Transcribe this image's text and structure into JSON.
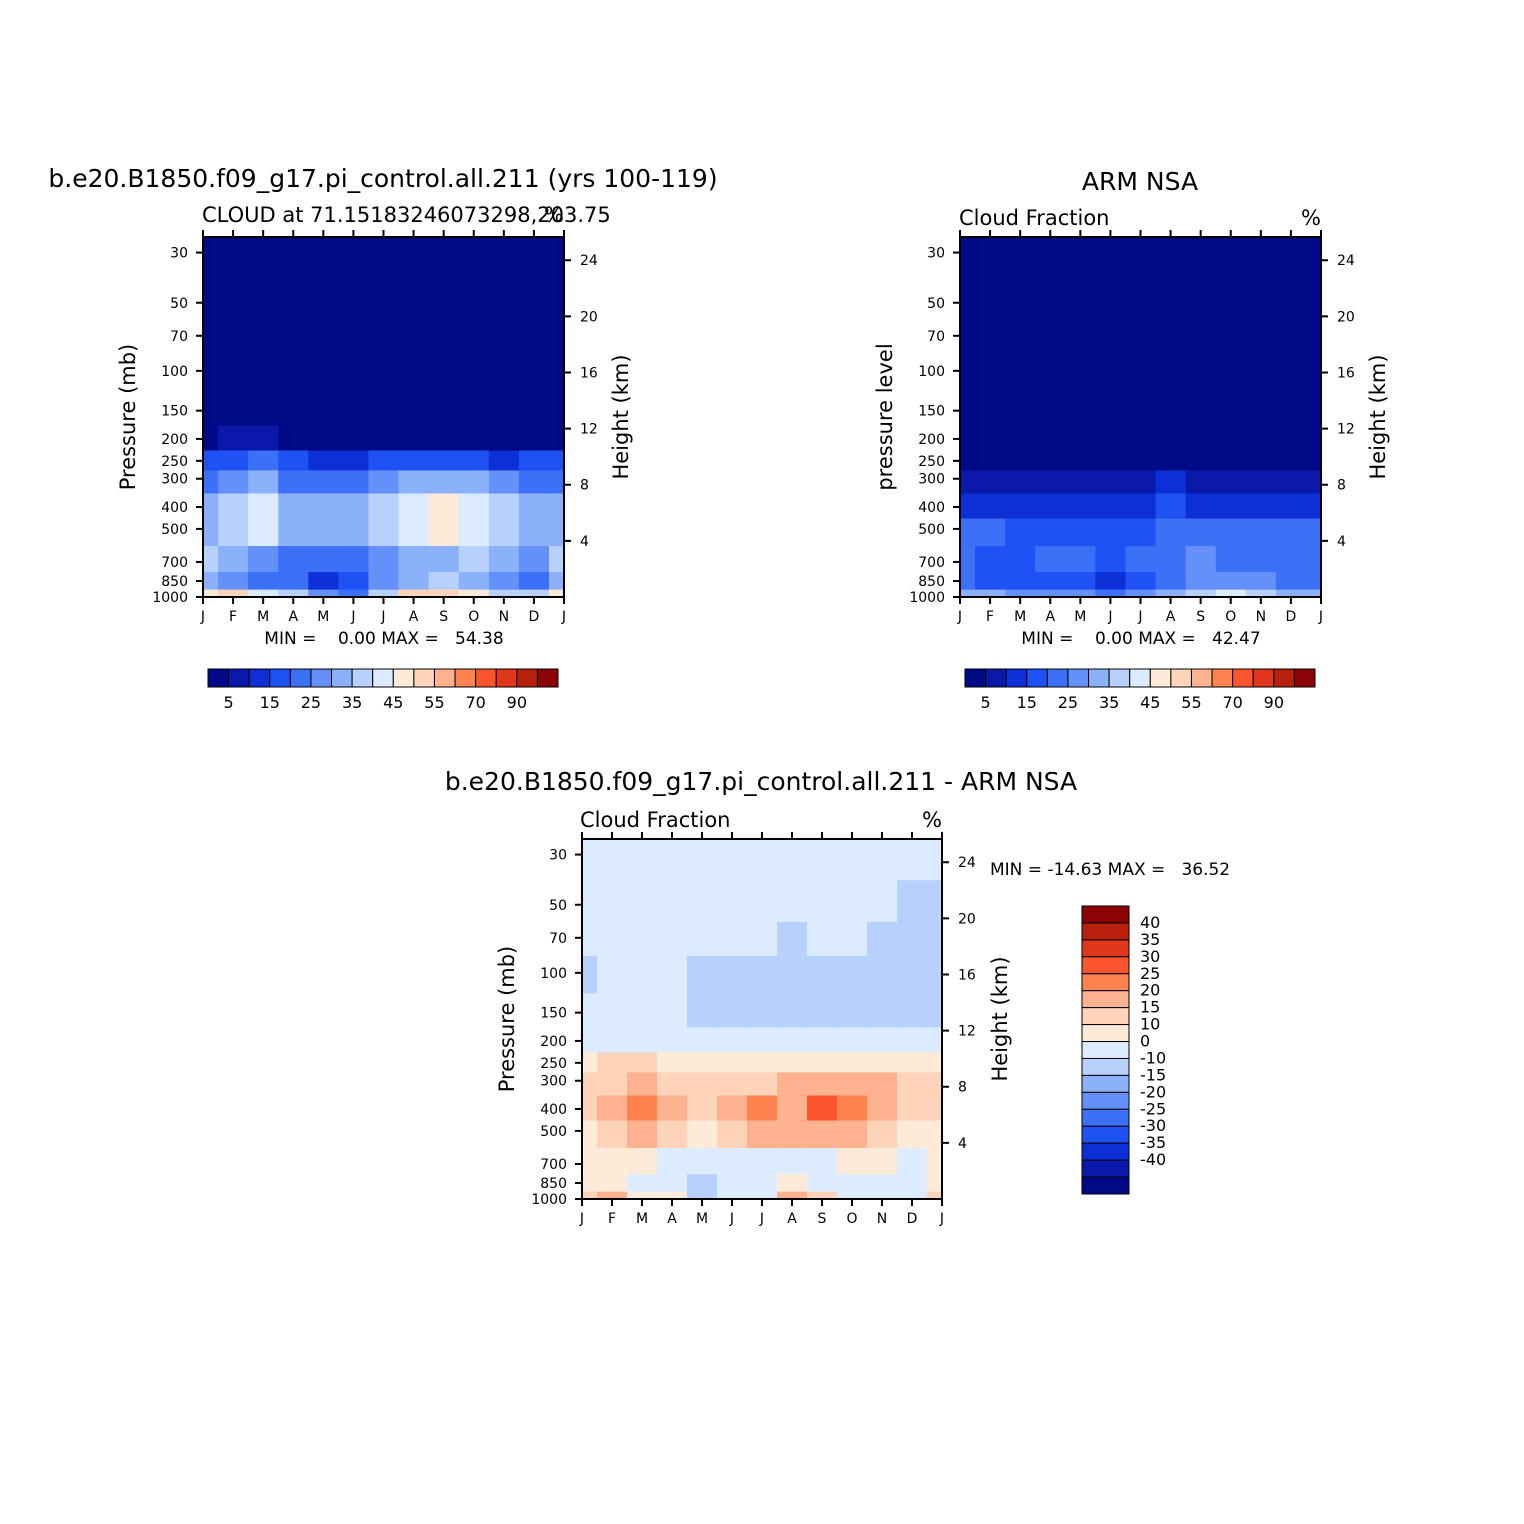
{
  "panels": [
    {
      "id": "model",
      "title": "b.e20.B1850.f09_g17.pi_control.all.211 (yrs 100-119)",
      "subtitle_left": "CLOUD at 71.15183246073298,203.75",
      "subtitle_right": "%",
      "ylabel_left": "Pressure (mb)",
      "ylabel_right": "Height (km)",
      "stats": "MIN =    0.00 MAX =   54.38"
    },
    {
      "id": "obs",
      "title": "ARM NSA",
      "subtitle_left": "Cloud Fraction",
      "subtitle_right": "%",
      "ylabel_left": "pressure level",
      "ylabel_right": "Height (km)",
      "stats": "MIN =    0.00 MAX =   42.47"
    },
    {
      "id": "diff",
      "title": "b.e20.B1850.f09_g17.pi_control.all.211 - ARM NSA",
      "subtitle_left": "Cloud Fraction",
      "subtitle_right": "%",
      "ylabel_left": "Pressure (mb)",
      "ylabel_right": "Height (km)",
      "stats": "MIN = -14.63 MAX =   36.52"
    }
  ],
  "chart_data": [
    {
      "type": "heatmap",
      "panel": "model",
      "x_ticks": [
        "J",
        "F",
        "M",
        "A",
        "M",
        "J",
        "J",
        "A",
        "S",
        "O",
        "N",
        "D",
        "J"
      ],
      "pressure_ticks": [
        30,
        50,
        70,
        100,
        150,
        200,
        250,
        300,
        400,
        500,
        700,
        850,
        1000
      ],
      "height_ticks_km": [
        24,
        20,
        16,
        12,
        8,
        4
      ],
      "levels": [
        1000,
        850,
        700,
        500,
        400,
        300,
        250,
        200,
        150,
        100,
        70,
        50,
        30
      ],
      "values": [
        [
          46,
          52,
          40,
          38,
          26,
          24,
          35,
          51,
          53,
          49,
          38,
          35,
          46
        ],
        [
          32,
          28,
          23,
          20,
          12,
          15,
          26,
          33,
          35,
          33,
          28,
          22,
          32
        ],
        [
          36,
          32,
          28,
          24,
          20,
          22,
          28,
          33,
          33,
          35,
          34,
          28,
          36
        ],
        [
          33,
          36,
          40,
          32,
          30,
          30,
          36,
          40,
          45,
          40,
          36,
          33,
          33
        ],
        [
          32,
          35,
          40,
          32,
          30,
          32,
          38,
          40,
          47,
          42,
          36,
          33,
          32
        ],
        [
          24,
          26,
          30,
          24,
          22,
          23,
          28,
          30,
          32,
          30,
          28,
          24,
          24
        ],
        [
          16,
          18,
          20,
          15,
          14,
          14,
          16,
          16,
          16,
          16,
          14,
          15,
          16
        ],
        [
          4,
          5,
          6,
          4,
          3,
          4,
          4,
          4,
          4,
          4,
          4,
          4,
          4
        ],
        [
          1,
          1,
          1,
          1,
          1,
          1,
          1,
          1,
          1,
          1,
          1,
          1,
          1
        ],
        [
          0,
          0,
          0,
          0,
          0,
          0,
          0,
          0,
          0,
          0,
          0,
          0,
          0
        ],
        [
          0,
          0,
          0,
          0,
          0,
          0,
          0,
          0,
          0,
          0,
          0,
          0,
          0
        ],
        [
          0,
          0,
          0,
          0,
          0,
          0,
          0,
          0,
          0,
          0,
          0,
          0,
          0
        ],
        [
          0,
          0,
          0,
          0,
          0,
          0,
          0,
          0,
          0,
          0,
          0,
          0,
          0
        ]
      ],
      "colorbar": {
        "bounds": [
          0,
          5,
          10,
          15,
          20,
          25,
          30,
          35,
          40,
          45,
          50,
          55,
          60,
          70,
          80,
          90,
          100
        ],
        "tick_labels": [
          "5",
          "15",
          "25",
          "35",
          "45",
          "55",
          "70",
          "90"
        ]
      }
    },
    {
      "type": "heatmap",
      "panel": "obs",
      "x_ticks": [
        "J",
        "F",
        "M",
        "A",
        "M",
        "J",
        "J",
        "A",
        "S",
        "O",
        "N",
        "D",
        "J"
      ],
      "pressure_ticks": [
        30,
        50,
        70,
        100,
        150,
        200,
        250,
        300,
        400,
        500,
        700,
        850,
        1000
      ],
      "height_ticks_km": [
        24,
        20,
        16,
        12,
        8,
        4
      ],
      "levels": [
        1000,
        850,
        700,
        500,
        400,
        300,
        250,
        200,
        150,
        100,
        70,
        50,
        30
      ],
      "values": [
        [
          30,
          30,
          28,
          26,
          28,
          22,
          26,
          30,
          35,
          40,
          36,
          30,
          30
        ],
        [
          20,
          18,
          16,
          18,
          18,
          10,
          18,
          22,
          26,
          28,
          26,
          20,
          20
        ],
        [
          22,
          18,
          16,
          20,
          20,
          16,
          20,
          24,
          26,
          24,
          24,
          22,
          22
        ],
        [
          20,
          20,
          18,
          16,
          18,
          15,
          16,
          20,
          22,
          20,
          20,
          20,
          20
        ],
        [
          14,
          14,
          13,
          12,
          12,
          12,
          13,
          16,
          14,
          14,
          14,
          14,
          14
        ],
        [
          8,
          9,
          8,
          7,
          7,
          8,
          9,
          10,
          8,
          8,
          8,
          8,
          8
        ],
        [
          3,
          3,
          3,
          3,
          3,
          3,
          3,
          3,
          3,
          3,
          3,
          3,
          3
        ],
        [
          1,
          1,
          1,
          1,
          1,
          1,
          1,
          1,
          1,
          1,
          1,
          1,
          1
        ],
        [
          0,
          0,
          0,
          0,
          0,
          0,
          0,
          0,
          0,
          0,
          0,
          0,
          0
        ],
        [
          0,
          0,
          0,
          0,
          0,
          0,
          0,
          0,
          0,
          0,
          0,
          0,
          0
        ],
        [
          0,
          0,
          0,
          0,
          0,
          0,
          0,
          0,
          0,
          0,
          0,
          0,
          0
        ],
        [
          0,
          0,
          0,
          0,
          0,
          0,
          0,
          0,
          0,
          0,
          0,
          0,
          0
        ],
        [
          0,
          0,
          0,
          0,
          0,
          0,
          0,
          0,
          0,
          0,
          0,
          0,
          0
        ]
      ],
      "colorbar": {
        "bounds": [
          0,
          5,
          10,
          15,
          20,
          25,
          30,
          35,
          40,
          45,
          50,
          55,
          60,
          70,
          80,
          90,
          100
        ],
        "tick_labels": [
          "5",
          "15",
          "25",
          "35",
          "45",
          "55",
          "70",
          "90"
        ]
      }
    },
    {
      "type": "heatmap",
      "panel": "diff",
      "x_ticks": [
        "J",
        "F",
        "M",
        "A",
        "M",
        "J",
        "J",
        "A",
        "S",
        "O",
        "N",
        "D",
        "J"
      ],
      "pressure_ticks": [
        30,
        50,
        70,
        100,
        150,
        200,
        250,
        300,
        400,
        500,
        700,
        850,
        1000
      ],
      "height_ticks_km": [
        24,
        20,
        16,
        12,
        8,
        4
      ],
      "levels": [
        1000,
        850,
        700,
        500,
        400,
        300,
        250,
        200,
        150,
        100,
        70,
        50,
        30
      ],
      "values": [
        [
          16,
          22,
          12,
          12,
          -2,
          2,
          9,
          21,
          18,
          9,
          2,
          5,
          16
        ],
        [
          12,
          10,
          7,
          2,
          -6,
          5,
          8,
          11,
          9,
          5,
          2,
          2,
          12
        ],
        [
          14,
          14,
          12,
          4,
          0,
          6,
          8,
          9,
          7,
          11,
          10,
          6,
          14
        ],
        [
          13,
          16,
          22,
          16,
          12,
          15,
          20,
          20,
          23,
          20,
          16,
          13,
          13
        ],
        [
          18,
          21,
          27,
          20,
          18,
          20,
          25,
          24,
          33,
          28,
          22,
          19,
          18
        ],
        [
          16,
          17,
          22,
          17,
          15,
          15,
          19,
          20,
          24,
          22,
          20,
          16,
          16
        ],
        [
          13,
          15,
          17,
          12,
          11,
          11,
          13,
          13,
          13,
          13,
          11,
          12,
          13
        ],
        [
          3,
          4,
          5,
          3,
          2,
          3,
          3,
          3,
          3,
          3,
          3,
          3,
          3
        ],
        [
          1,
          1,
          1,
          1,
          -1,
          -1,
          -1,
          -1,
          -1,
          -2,
          -2,
          -2,
          -2
        ],
        [
          -1,
          1,
          1,
          1,
          -2,
          -2,
          -2,
          -2,
          -2,
          -2,
          -2,
          -3,
          -3
        ],
        [
          1,
          1,
          1,
          1,
          1,
          1,
          1,
          -2,
          1,
          1,
          -2,
          -3,
          -3
        ],
        [
          1,
          1,
          1,
          1,
          1,
          1,
          1,
          1,
          1,
          1,
          1,
          -3,
          -3
        ],
        [
          1,
          1,
          1,
          1,
          1,
          1,
          1,
          1,
          1,
          1,
          1,
          1,
          1
        ]
      ],
      "colorbar": {
        "bounds": [
          -45,
          -40,
          -35,
          -30,
          -25,
          -20,
          -15,
          -10,
          0,
          10,
          15,
          20,
          25,
          30,
          35,
          40,
          45
        ],
        "tick_labels": [
          "40",
          "35",
          "30",
          "25",
          "20",
          "15",
          "10",
          "0",
          "-10",
          "-15",
          "-20",
          "-25",
          "-30",
          "-35",
          "-40"
        ]
      }
    }
  ],
  "colors": {
    "scale": [
      "#000a87",
      "#0a19aa",
      "#0c2fd8",
      "#1f52f5",
      "#3b70f7",
      "#6390f9",
      "#8cb1fb",
      "#b8d0fc",
      "#dcebfd",
      "#feead9",
      "#fdd3b9",
      "#fcb18f",
      "#fc8250",
      "#fa552c",
      "#e0361b",
      "#b8200d",
      "#8c0404"
    ]
  }
}
